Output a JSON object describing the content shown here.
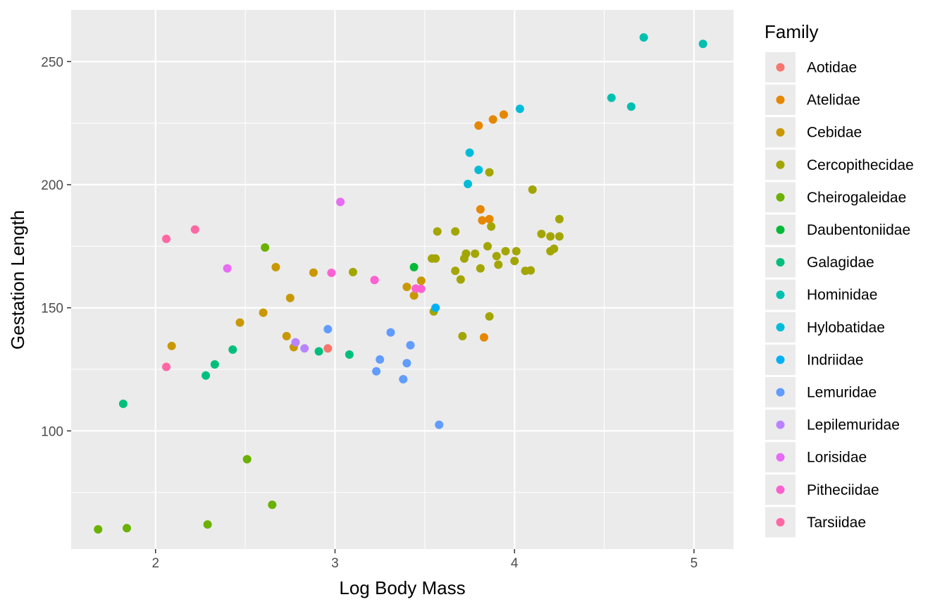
{
  "chart_data": {
    "type": "scatter",
    "xlabel": "Log Body Mass",
    "ylabel": "Gestation Length",
    "xlim": [
      1.53,
      5.22
    ],
    "ylim": [
      52,
      271
    ],
    "x_ticks": [
      2,
      3,
      4,
      5
    ],
    "y_ticks": [
      100,
      150,
      200,
      250
    ],
    "grid": true,
    "legend_title": "Family",
    "legend_position": "right",
    "series": [
      {
        "name": "Aotidae",
        "color": "#F8766D",
        "points": [
          [
            2.96,
            133.5
          ]
        ]
      },
      {
        "name": "Atelidae",
        "color": "#E58700",
        "points": [
          [
            3.8,
            224
          ],
          [
            3.88,
            226.5
          ],
          [
            3.94,
            228.5
          ],
          [
            3.81,
            190
          ],
          [
            3.82,
            185.5
          ],
          [
            3.86,
            186
          ],
          [
            3.83,
            138
          ]
        ]
      },
      {
        "name": "Cebidae",
        "color": "#C99800",
        "points": [
          [
            2.09,
            134.5
          ],
          [
            2.47,
            144
          ],
          [
            2.6,
            148
          ],
          [
            2.67,
            166.5
          ],
          [
            2.73,
            138.5
          ],
          [
            2.75,
            154
          ],
          [
            2.77,
            134
          ],
          [
            2.88,
            164.3
          ],
          [
            3.4,
            158.5
          ],
          [
            3.44,
            155
          ],
          [
            3.48,
            161
          ]
        ]
      },
      {
        "name": "Cercopithecidae",
        "color": "#A3A500",
        "points": [
          [
            3.1,
            164.5
          ],
          [
            3.54,
            170
          ],
          [
            3.56,
            170
          ],
          [
            3.57,
            181
          ],
          [
            3.55,
            148.5
          ],
          [
            3.67,
            181
          ],
          [
            3.67,
            165
          ],
          [
            3.7,
            161.5
          ],
          [
            3.71,
            138.5
          ],
          [
            3.72,
            170
          ],
          [
            3.73,
            172
          ],
          [
            3.78,
            172
          ],
          [
            3.81,
            166
          ],
          [
            3.85,
            175
          ],
          [
            3.86,
            205
          ],
          [
            3.87,
            183
          ],
          [
            3.86,
            146.5
          ],
          [
            3.9,
            171
          ],
          [
            3.91,
            167.5
          ],
          [
            3.95,
            173
          ],
          [
            4.0,
            169
          ],
          [
            4.01,
            173
          ],
          [
            4.06,
            165
          ],
          [
            4.09,
            165.2
          ],
          [
            4.1,
            198
          ],
          [
            4.15,
            180
          ],
          [
            4.2,
            173
          ],
          [
            4.2,
            179
          ],
          [
            4.22,
            174
          ],
          [
            4.25,
            179
          ],
          [
            4.25,
            186
          ]
        ]
      },
      {
        "name": "Cheirogaleidae",
        "color": "#6BB100",
        "points": [
          [
            1.68,
            60
          ],
          [
            1.84,
            60.5
          ],
          [
            2.29,
            62
          ],
          [
            2.51,
            88.5
          ],
          [
            2.61,
            174.5
          ],
          [
            2.65,
            70
          ]
        ]
      },
      {
        "name": "Daubentoniidae",
        "color": "#00BA38",
        "points": [
          [
            3.44,
            166.5
          ]
        ]
      },
      {
        "name": "Galagidae",
        "color": "#00BF7D",
        "points": [
          [
            1.82,
            111
          ],
          [
            2.28,
            122.5
          ],
          [
            2.33,
            127
          ],
          [
            2.43,
            133
          ],
          [
            2.91,
            132.3
          ],
          [
            3.08,
            131
          ]
        ]
      },
      {
        "name": "Hominidae",
        "color": "#00C0AF",
        "points": [
          [
            4.54,
            235.3
          ],
          [
            4.65,
            231.7
          ],
          [
            4.72,
            259.8
          ],
          [
            5.05,
            257.2
          ]
        ]
      },
      {
        "name": "Hylobatidae",
        "color": "#00BCD8",
        "points": [
          [
            3.74,
            200.3
          ],
          [
            3.75,
            213
          ],
          [
            3.8,
            206
          ],
          [
            4.03,
            230.8
          ]
        ]
      },
      {
        "name": "Indriidae",
        "color": "#00B0F6",
        "points": [
          [
            3.56,
            150
          ]
        ]
      },
      {
        "name": "Lemuridae",
        "color": "#619CFF",
        "points": [
          [
            2.96,
            141.3
          ],
          [
            3.23,
            124.2
          ],
          [
            3.25,
            129
          ],
          [
            3.31,
            140
          ],
          [
            3.38,
            121
          ],
          [
            3.4,
            127.5
          ],
          [
            3.42,
            134.8
          ],
          [
            3.58,
            102.5
          ]
        ]
      },
      {
        "name": "Lepilemuridae",
        "color": "#B983FF",
        "points": [
          [
            2.78,
            136
          ],
          [
            2.83,
            133.5
          ]
        ]
      },
      {
        "name": "Lorisidae",
        "color": "#E76BF3",
        "points": [
          [
            2.4,
            166
          ],
          [
            3.03,
            193
          ]
        ]
      },
      {
        "name": "Pitheciidae",
        "color": "#FD61D1",
        "points": [
          [
            2.98,
            164.2
          ],
          [
            3.22,
            161.3
          ],
          [
            3.45,
            157.8
          ],
          [
            3.48,
            157.7
          ]
        ]
      },
      {
        "name": "Tarsiidae",
        "color": "#FF67A4",
        "points": [
          [
            2.06,
            126
          ],
          [
            2.06,
            178
          ],
          [
            2.22,
            181.8
          ]
        ]
      }
    ]
  }
}
